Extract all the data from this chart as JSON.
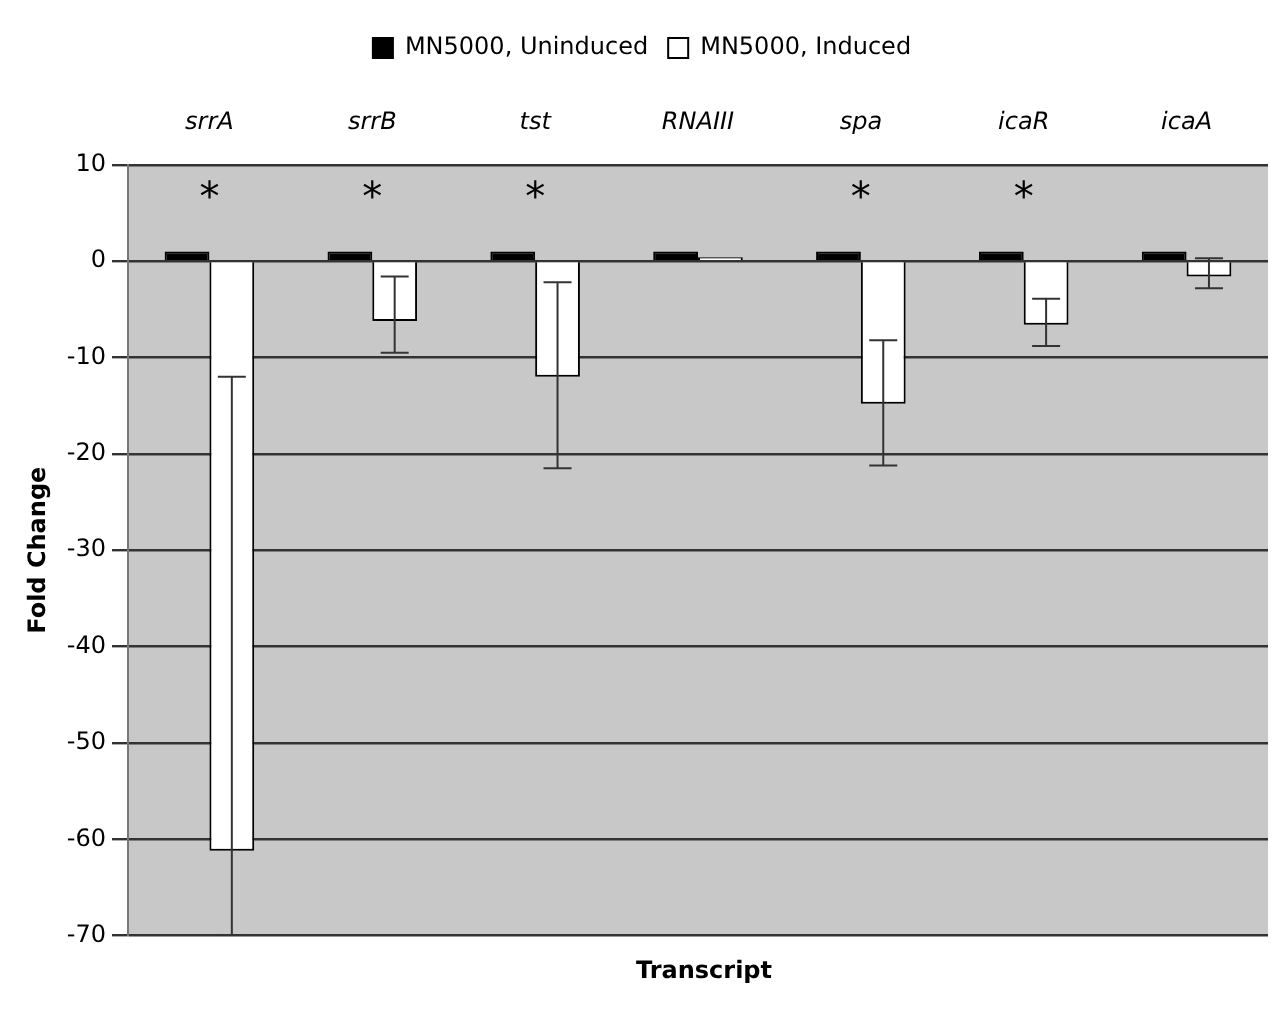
{
  "chart_data": {
    "type": "bar",
    "xlabel": "Transcript",
    "ylabel": "Fold Change",
    "categories": [
      "srrA",
      "srrB",
      "tst",
      "RNAIII",
      "spa",
      "icaR",
      "icaA"
    ],
    "series": [
      {
        "name": "MN5000, Uninduced",
        "color": "#000000",
        "values": [
          1,
          1,
          1,
          1,
          1,
          1,
          1
        ],
        "value_labels": [
          "*",
          "*",
          "*",
          null,
          "*",
          "*",
          null
        ]
      },
      {
        "name": "MN5000, Induced",
        "color": "#ffffff",
        "values": [
          -61.2,
          -6.2,
          -12,
          0.4,
          -14.8,
          -6.6,
          -1.6
        ],
        "errors": [
          [
            -70,
            -12
          ],
          [
            -9.5,
            -1.6
          ],
          [
            -21.5,
            -2.2
          ],
          null,
          [
            -21.2,
            -8.2
          ],
          [
            -8.8,
            -3.9
          ],
          [
            -2.8,
            0.3
          ]
        ]
      }
    ],
    "ylim": [
      -70,
      10
    ],
    "yticks": [
      10,
      0,
      -10,
      -20,
      -30,
      -40,
      -50,
      -60,
      -70
    ],
    "grid": "y",
    "legend": "top"
  }
}
